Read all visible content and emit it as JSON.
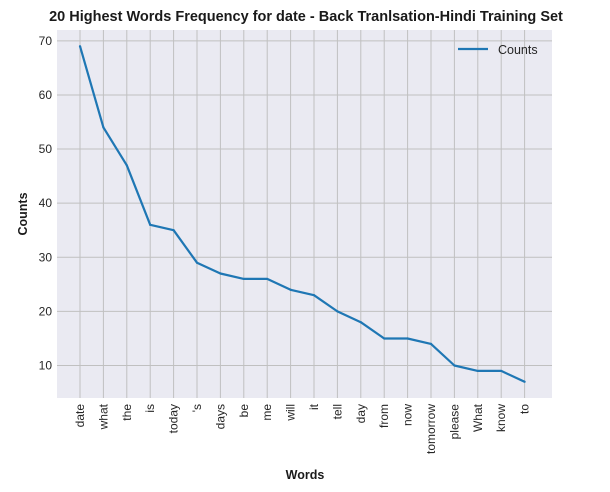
{
  "chart_data": {
    "type": "line",
    "title": "20 Highest Words Frequency for date - Back Tranlsation-Hindi Training Set",
    "xlabel": "Words",
    "ylabel": "Counts",
    "categories": [
      "date",
      "what",
      "the",
      "is",
      "today",
      "'s",
      "days",
      "be",
      "me",
      "will",
      "it",
      "tell",
      "day",
      "from",
      "now",
      "tomorrow",
      "please",
      "What",
      "know",
      "to"
    ],
    "series": [
      {
        "name": "Counts",
        "values": [
          69,
          54,
          47,
          36,
          35,
          29,
          27,
          26,
          26,
          24,
          23,
          20,
          18,
          15,
          15,
          14,
          10,
          9,
          9,
          7
        ]
      }
    ],
    "ylim": [
      4,
      72
    ],
    "yticks": [
      10,
      20,
      30,
      40,
      50,
      60,
      70
    ],
    "grid": true,
    "legend_position": "top-right",
    "colors": {
      "line": "#1f77b4",
      "background": "#eaeaf2",
      "grid": "#c0c0c0"
    }
  }
}
